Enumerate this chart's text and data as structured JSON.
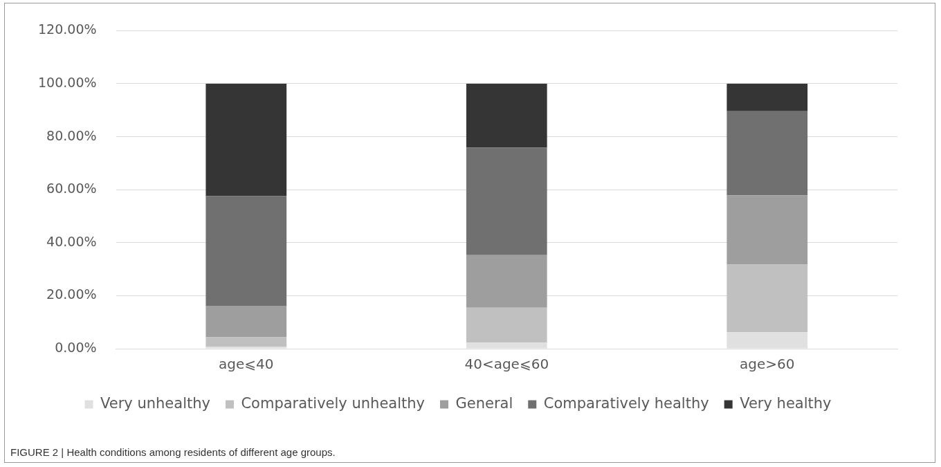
{
  "chart_data": {
    "type": "bar",
    "stacked": true,
    "categories": [
      "age⩽40",
      "40<age⩽60",
      "age>60"
    ],
    "series": [
      {
        "name": "Very unhealthy",
        "color": "#e0e0e0",
        "values": [
          0.8,
          2.3,
          6.2
        ]
      },
      {
        "name": "Comparatively unhealthy",
        "color": "#c0c0c0",
        "values": [
          3.5,
          13.2,
          25.5
        ]
      },
      {
        "name": "General",
        "color": "#9e9e9e",
        "values": [
          11.9,
          19.8,
          26.2
        ]
      },
      {
        "name": "Comparatively healthy",
        "color": "#707070",
        "values": [
          41.4,
          40.6,
          31.7
        ]
      },
      {
        "name": "Very healthy",
        "color": "#353535",
        "values": [
          42.4,
          24.1,
          10.4
        ]
      }
    ],
    "ylim": [
      0,
      120
    ],
    "yticks": [
      {
        "value": 0,
        "label": "0.00%"
      },
      {
        "value": 20,
        "label": "20.00%"
      },
      {
        "value": 40,
        "label": "40.00%"
      },
      {
        "value": 60,
        "label": "60.00%"
      },
      {
        "value": 80,
        "label": "80.00%"
      },
      {
        "value": 100,
        "label": "100.00%"
      },
      {
        "value": 120,
        "label": "120.00%"
      }
    ],
    "grid": "y",
    "legend": "bottom",
    "annotations": [
      "FIGURE 2 | Health conditions among residents of different age groups."
    ]
  }
}
